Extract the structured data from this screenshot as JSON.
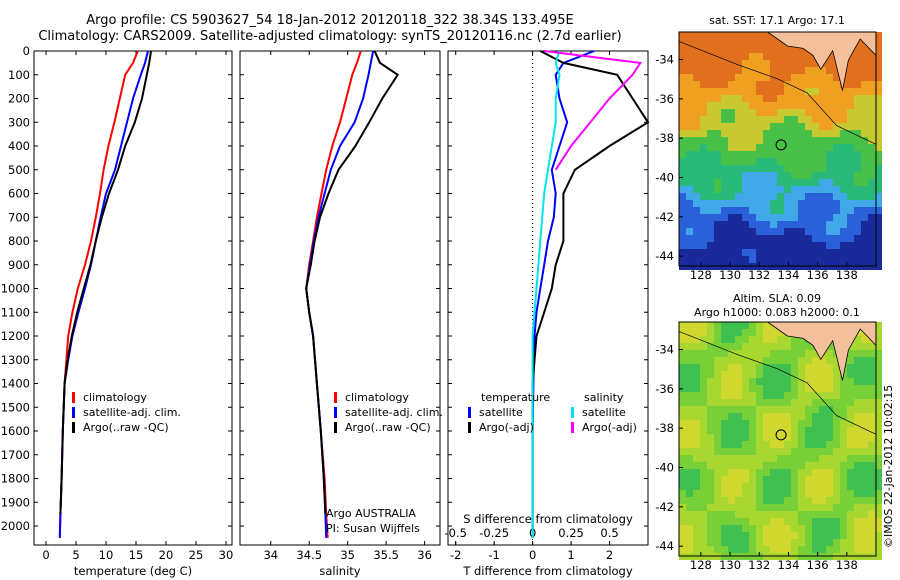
{
  "title": {
    "line1": "Argo profile: CS 5903627_54 18-Jan-2012 20120118_322 38.34S 133.495E",
    "line2": "Climatology: CARS2009. Satellite-adjusted climatology: synTS_20120116.nc (2.7d earlier)"
  },
  "colors": {
    "climatology": "#ff0000",
    "satellite": "#0000ff",
    "argo": "#000000",
    "cyan": "#00e5ee",
    "magenta": "#ff00ff"
  },
  "chart_data": [
    {
      "type": "line",
      "xlabel": "temperature (deg C)",
      "ylabel": "",
      "xlim": [
        -2,
        31
      ],
      "ylim": [
        2080,
        0
      ],
      "xticks": [
        "0",
        "5",
        "10",
        "15",
        "20",
        "25",
        "30"
      ],
      "yticks": [
        "0",
        "100",
        "200",
        "300",
        "400",
        "500",
        "600",
        "700",
        "800",
        "900",
        "1000",
        "1100",
        "1200",
        "1300",
        "1400",
        "1500",
        "1600",
        "1700",
        "1800",
        "1900",
        "2000"
      ],
      "legend": {
        "position": "lower-center",
        "entries": [
          "climatology",
          "satellite-adj. clim.",
          "Argo(..raw -QC)"
        ]
      },
      "series": [
        {
          "name": "climatology",
          "color": "#ff0000",
          "x": [
            15.3,
            14.5,
            13.2,
            12.3,
            11.4,
            10.4,
            9.6,
            9.0,
            8.3,
            7.5,
            6.5,
            5.3,
            4.4,
            3.7,
            3.1,
            2.8,
            2.6,
            2.4,
            2.3
          ],
          "y": [
            0,
            50,
            100,
            200,
            300,
            400,
            500,
            600,
            700,
            800,
            900,
            1000,
            1100,
            1200,
            1400,
            1600,
            1800,
            1950,
            2050
          ]
        },
        {
          "name": "satellite-adj. clim.",
          "color": "#0000ff",
          "x": [
            17.0,
            16.5,
            15.8,
            14.5,
            13.5,
            12.5,
            11.5,
            10.0,
            9.1,
            8.3,
            7.5,
            6.5,
            5.4,
            4.4,
            3.7,
            3.1,
            2.8,
            2.6,
            2.4,
            2.3
          ],
          "y": [
            0,
            50,
            100,
            200,
            300,
            400,
            500,
            600,
            700,
            800,
            900,
            1000,
            1100,
            1200,
            1300,
            1400,
            1600,
            1800,
            1950,
            2050
          ]
        },
        {
          "name": "Argo(..raw -QC)",
          "color": "#000000",
          "x": [
            17.5,
            17.2,
            16.8,
            16.0,
            14.8,
            13.2,
            12.0,
            10.5,
            9.3,
            8.3,
            7.4,
            6.3,
            5.2,
            4.3,
            3.6,
            3.1,
            2.8,
            2.6,
            2.4
          ],
          "y": [
            0,
            50,
            100,
            200,
            300,
            400,
            500,
            600,
            700,
            800,
            900,
            1000,
            1100,
            1200,
            1300,
            1400,
            1600,
            1800,
            1950
          ]
        }
      ]
    },
    {
      "type": "line",
      "xlabel": "salinity",
      "ylabel": "",
      "xlim": [
        33.6,
        36.2
      ],
      "ylim": [
        2080,
        0
      ],
      "xticks": [
        "34",
        "34.5",
        "35",
        "35.5",
        "36"
      ],
      "legend": {
        "position": "lower-center",
        "entries": [
          "climatology",
          "satellite-adj. clim.",
          "Argo(..raw -QC)"
        ]
      },
      "annotations": [
        "Argo AUSTRALIA",
        "PI: Susan Wijffels"
      ],
      "series": [
        {
          "name": "climatology",
          "color": "#ff0000",
          "x": [
            35.17,
            35.12,
            35.06,
            34.98,
            34.9,
            34.8,
            34.72,
            34.66,
            34.6,
            34.55,
            34.5,
            34.46,
            34.5,
            34.55,
            34.6,
            34.65,
            34.7,
            34.72,
            34.74
          ],
          "y": [
            0,
            50,
            100,
            200,
            300,
            400,
            500,
            600,
            700,
            800,
            900,
            1000,
            1100,
            1200,
            1400,
            1600,
            1800,
            1950,
            2050
          ]
        },
        {
          "name": "satellite-adj. clim.",
          "color": "#0000ff",
          "x": [
            35.33,
            35.3,
            35.27,
            35.2,
            35.09,
            34.9,
            34.78,
            34.7,
            34.62,
            34.56,
            34.51,
            34.46,
            34.5,
            34.55,
            34.6,
            34.65,
            34.69,
            34.71,
            34.72
          ],
          "y": [
            0,
            50,
            100,
            200,
            300,
            400,
            500,
            600,
            700,
            800,
            900,
            1000,
            1100,
            1200,
            1400,
            1600,
            1800,
            1950,
            2050
          ]
        },
        {
          "name": "Argo(..raw -QC)",
          "color": "#000000",
          "x": [
            35.35,
            35.42,
            35.65,
            35.45,
            35.28,
            35.1,
            34.88,
            34.75,
            34.64,
            34.57,
            34.52,
            34.46,
            34.5,
            34.55,
            34.6,
            34.65,
            34.69,
            34.71
          ],
          "y": [
            0,
            50,
            100,
            200,
            300,
            400,
            500,
            600,
            700,
            800,
            900,
            1000,
            1100,
            1200,
            1400,
            1600,
            1800,
            1950
          ]
        }
      ]
    },
    {
      "type": "line",
      "xlabel": "T difference from climatology",
      "x2label": "S difference from climatology",
      "xlim": [
        -2.2,
        3.0
      ],
      "ylim": [
        2080,
        0
      ],
      "xticks": [
        "-2",
        "-1",
        "0",
        "1",
        "2"
      ],
      "x2ticks": [
        "-0.5",
        "-0.25",
        "0",
        "0.25",
        "0.5"
      ],
      "legend": {
        "position": "lower-center",
        "entries": [
          "temperature",
          "satellite",
          "Argo(-adj)",
          "salinity",
          "satellite",
          "Argo(-adj)"
        ]
      },
      "series": [
        {
          "name": "satellite",
          "color": "#0000ff",
          "x": [
            1.6,
            0.8,
            0.6,
            0.7,
            0.9,
            0.7,
            0.5,
            0.6,
            0.55,
            0.4,
            0.3,
            0.2,
            0.1,
            0.05,
            0.02,
            0.0,
            0.0,
            0.0
          ],
          "y": [
            0,
            50,
            100,
            200,
            300,
            400,
            500,
            600,
            700,
            800,
            900,
            1000,
            1100,
            1200,
            1400,
            1600,
            1800,
            2050
          ]
        },
        {
          "name": "Argo(-adj)",
          "color": "#000000",
          "x": [
            0.2,
            0.8,
            2.2,
            2.6,
            3.0,
            2.0,
            1.1,
            0.8,
            0.8,
            0.8,
            0.6,
            0.5,
            0.3,
            0.1,
            0.0,
            0.0,
            0.0,
            0.0
          ],
          "y": [
            0,
            50,
            100,
            200,
            300,
            400,
            500,
            600,
            700,
            800,
            900,
            1000,
            1100,
            1200,
            1400,
            1600,
            1800,
            2050
          ]
        },
        {
          "name": "satellite",
          "color": "#00e5ee",
          "x": [
            0.7,
            0.6,
            0.7,
            0.6,
            0.6,
            0.5,
            0.4,
            0.3,
            0.25,
            0.2,
            0.15,
            0.1,
            0.05,
            0.0,
            0.0,
            0.0,
            0.0
          ],
          "y": [
            0,
            50,
            100,
            200,
            300,
            400,
            500,
            600,
            700,
            800,
            900,
            1000,
            1100,
            1200,
            1600,
            1800,
            2050
          ]
        },
        {
          "name": "Argo(-adj)",
          "color": "#ff00ff",
          "x": [
            0.3,
            2.8,
            2.6,
            2.0,
            1.5,
            1.0,
            0.6
          ],
          "y": [
            0,
            50,
            100,
            200,
            300,
            400,
            500
          ]
        }
      ]
    }
  ],
  "maps": {
    "top": {
      "title": "sat. SST: 17.1  Argo: 17.1",
      "xticks": [
        "128",
        "130",
        "132",
        "134",
        "136",
        "138"
      ],
      "yticks": [
        "-34",
        "-36",
        "-38",
        "-40",
        "-42",
        "-44"
      ]
    },
    "bottom": {
      "title_line1": "Altim. SLA: 0.09",
      "title_line2": "Argo h1000: 0.083 h2000: 0.1",
      "xticks": [
        "128",
        "130",
        "132",
        "134",
        "136",
        "138"
      ],
      "yticks": [
        "-34",
        "-36",
        "-38",
        "-40",
        "-42",
        "-44"
      ]
    }
  },
  "credit": "©IMOS 22-Jan-2012 10:02:15"
}
